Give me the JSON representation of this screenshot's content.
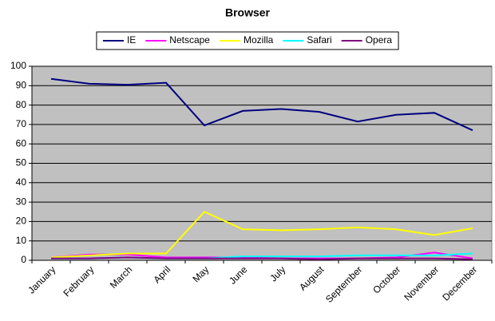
{
  "chart_data": {
    "type": "line",
    "title": "Browser",
    "categories": [
      "January",
      "February",
      "March",
      "April",
      "May",
      "June",
      "July",
      "August",
      "September",
      "October",
      "November",
      "December"
    ],
    "series": [
      {
        "name": "IE",
        "color": "#000080",
        "values": [
          93.5,
          91,
          90.5,
          91.5,
          69.5,
          77,
          78,
          76.5,
          71.5,
          75,
          76,
          67
        ]
      },
      {
        "name": "Netscape",
        "color": "#ff00ff",
        "values": [
          1.5,
          3,
          3,
          1.5,
          1.5,
          1.5,
          1,
          1,
          1,
          1.5,
          4,
          1
        ]
      },
      {
        "name": "Mozilla",
        "color": "#ffff00",
        "values": [
          1.5,
          2.5,
          3.5,
          3.5,
          25,
          16,
          15.5,
          16,
          17,
          16,
          13,
          16.5
        ]
      },
      {
        "name": "Safari",
        "color": "#00ffff",
        "values": [
          1,
          1,
          1.5,
          1,
          1,
          2,
          2,
          2,
          2.5,
          2.5,
          2.5,
          3.5
        ]
      },
      {
        "name": "Opera",
        "color": "#800080",
        "values": [
          1,
          1,
          1.5,
          1,
          1,
          1,
          1,
          0.5,
          1,
          1,
          1,
          0.5
        ]
      }
    ],
    "ylim": [
      0,
      100
    ],
    "yticks": [
      0,
      10,
      20,
      30,
      40,
      50,
      60,
      70,
      80,
      90,
      100
    ],
    "grid": true,
    "legend": "top",
    "plot_background": "#c0c0c0"
  }
}
